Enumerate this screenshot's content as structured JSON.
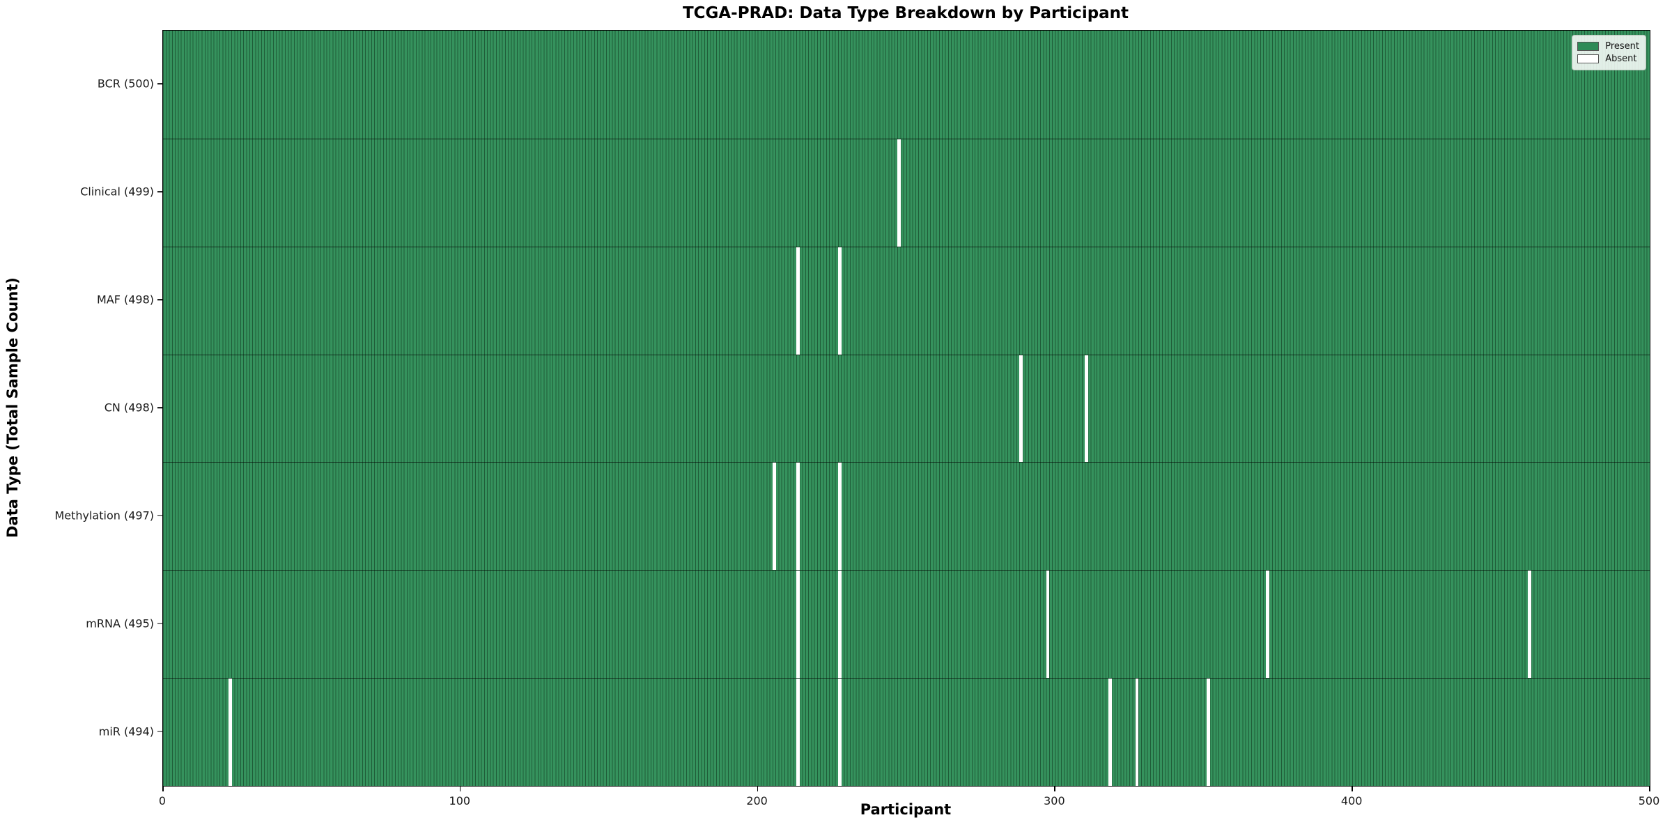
{
  "chart_data": {
    "type": "heatmap",
    "title": "TCGA-PRAD: Data Type Breakdown by Participant",
    "xlabel": "Participant",
    "ylabel": "Data Type (Total Sample Count)",
    "x_range": [
      0,
      500
    ],
    "x_ticks": [
      0,
      100,
      200,
      300,
      400,
      500
    ],
    "n_participants": 500,
    "grid": false,
    "legend_position": "upper right",
    "colors": {
      "present_fill": "#35925d",
      "bar_edge": "#1f5c38",
      "absent_fill": "#ffffff"
    },
    "legend": [
      {
        "label": "Present",
        "color": "#2e8b57"
      },
      {
        "label": "Absent",
        "color": "#ffffff"
      }
    ],
    "rows": [
      {
        "label": "BCR (500)",
        "data_type": "BCR",
        "total": 500,
        "absent_participants": []
      },
      {
        "label": "Clinical (499)",
        "data_type": "Clinical",
        "total": 499,
        "absent_participants": [
          247
        ]
      },
      {
        "label": "MAF (498)",
        "data_type": "MAF",
        "total": 498,
        "absent_participants": [
          213,
          227
        ]
      },
      {
        "label": "CN (498)",
        "data_type": "CN",
        "total": 498,
        "absent_participants": [
          288,
          310
        ]
      },
      {
        "label": "Methylation (497)",
        "data_type": "Methylation",
        "total": 497,
        "absent_participants": [
          205,
          213,
          227
        ]
      },
      {
        "label": "mRNA (495)",
        "data_type": "mRNA",
        "total": 495,
        "absent_participants": [
          213,
          227,
          297,
          371,
          459
        ]
      },
      {
        "label": "miR (494)",
        "data_type": "miR",
        "total": 494,
        "absent_participants": [
          22,
          213,
          227,
          318,
          327,
          351
        ]
      }
    ]
  }
}
